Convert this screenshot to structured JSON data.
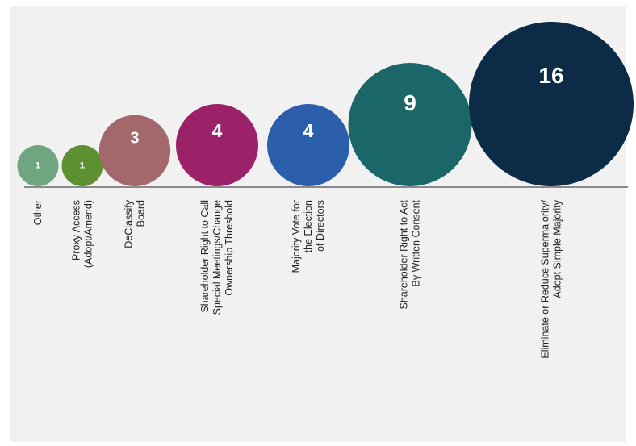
{
  "chart_data": {
    "type": "bubble",
    "title": "",
    "categories": [
      [
        "Other"
      ],
      [
        "Proxy Access",
        "(Adopt/Amend)"
      ],
      [
        "DeClassify",
        "Board"
      ],
      [
        "Shareholder Right to Call",
        "Special Meetings/Change",
        "Ownership Threshold"
      ],
      [
        "Majority Vote for",
        "the Election",
        "of Directors"
      ],
      [
        "Shareholder Right to Act",
        "By Written Consent"
      ],
      [
        "Eliminate or Reduce Supermajority/",
        "Adopt Simple Majority"
      ]
    ],
    "values": [
      1,
      1,
      3,
      4,
      4,
      9,
      16
    ],
    "value_labels": [
      "1",
      "1",
      "3",
      "4",
      "4",
      "9",
      "16"
    ],
    "colors": [
      "#6fa57f",
      "#5d9030",
      "#a3686c",
      "#9b2168",
      "#2b5eab",
      "#1a6669",
      "#0c2b47"
    ],
    "legend": "none",
    "grid": false
  }
}
